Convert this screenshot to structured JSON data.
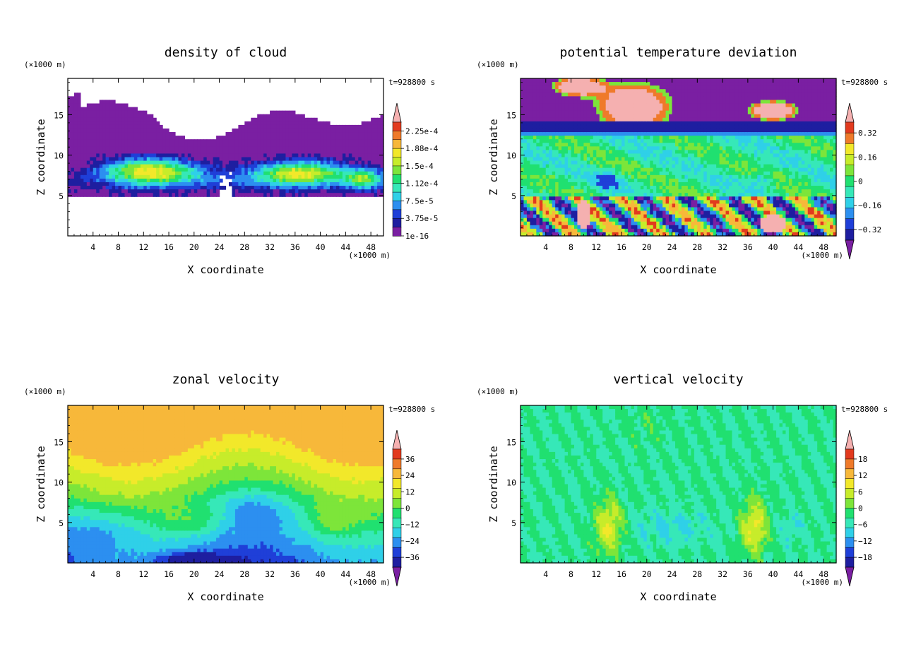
{
  "chart_data": [
    {
      "type": "heatmap",
      "title": "density of cloud",
      "xlabel": "X coordinate",
      "ylabel": "Z coordinate",
      "x_unit": "(×1000 m)",
      "y_unit": "(×1000 m)",
      "time_label": "t=928800 s",
      "xlim": [
        0,
        50
      ],
      "ylim": [
        0,
        19.5
      ],
      "xticks": [
        "4",
        "8",
        "12",
        "16",
        "20",
        "24",
        "28",
        "32",
        "36",
        "40",
        "44",
        "48"
      ],
      "yticks": [
        "5",
        "10",
        "15"
      ],
      "colorbar": {
        "labels": [
          "2.25e-4",
          "1.88e-4",
          "1.5e-4",
          "1.12e-4",
          "7.5e-5",
          "3.75e-5",
          "1e-16"
        ],
        "min_triangle": false,
        "max_triangle": true
      }
    },
    {
      "type": "heatmap",
      "title": "potential temperature deviation",
      "xlabel": "X coordinate",
      "ylabel": "Z coordinate",
      "x_unit": "(×1000 m)",
      "y_unit": "(×1000 m)",
      "time_label": "t=928800 s",
      "xlim": [
        0,
        50
      ],
      "ylim": [
        0,
        19.5
      ],
      "xticks": [
        "4",
        "8",
        "12",
        "16",
        "20",
        "24",
        "28",
        "32",
        "36",
        "40",
        "44",
        "48"
      ],
      "yticks": [
        "5",
        "10",
        "15"
      ],
      "colorbar": {
        "labels": [
          "0.32",
          "0.16",
          "0",
          "−0.16",
          "−0.32"
        ],
        "min_triangle": true,
        "max_triangle": true
      }
    },
    {
      "type": "heatmap",
      "title": "zonal velocity",
      "xlabel": "X coordinate",
      "ylabel": "Z coordinate",
      "x_unit": "(×1000 m)",
      "y_unit": "(×1000 m)",
      "time_label": "t=928800 s",
      "xlim": [
        0,
        50
      ],
      "ylim": [
        0,
        19.5
      ],
      "xticks": [
        "4",
        "8",
        "12",
        "16",
        "20",
        "24",
        "28",
        "32",
        "36",
        "40",
        "44",
        "48"
      ],
      "yticks": [
        "5",
        "10",
        "15"
      ],
      "colorbar": {
        "labels": [
          "36",
          "24",
          "12",
          "0",
          "−12",
          "−24",
          "−36"
        ],
        "min_triangle": true,
        "max_triangle": true
      }
    },
    {
      "type": "heatmap",
      "title": "vertical velocity",
      "xlabel": "X coordinate",
      "ylabel": "Z coordinate",
      "x_unit": "(×1000 m)",
      "y_unit": "(×1000 m)",
      "time_label": "t=928800 s",
      "xlim": [
        0,
        50
      ],
      "ylim": [
        0,
        19.5
      ],
      "xticks": [
        "4",
        "8",
        "12",
        "16",
        "20",
        "24",
        "28",
        "32",
        "36",
        "40",
        "44",
        "48"
      ],
      "yticks": [
        "5",
        "10",
        "15"
      ],
      "colorbar": {
        "labels": [
          "18",
          "12",
          "6",
          "0",
          "−6",
          "−12",
          "−18"
        ],
        "min_triangle": true,
        "max_triangle": true
      }
    }
  ],
  "colors": {
    "palette": [
      "#7a1fa2",
      "#1e1ea0",
      "#1f3fd8",
      "#2c8ff0",
      "#2fd0e8",
      "#36e8b8",
      "#20e070",
      "#7de53a",
      "#c7ec2a",
      "#f2e82a",
      "#f7b83a",
      "#ef7a2a",
      "#e23a1e",
      "#f5b0b0"
    ]
  }
}
